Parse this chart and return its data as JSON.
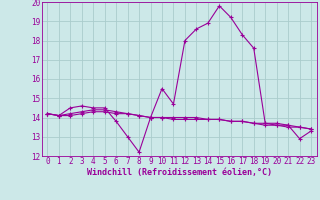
{
  "xlabel": "Windchill (Refroidissement éolien,°C)",
  "x_values": [
    0,
    1,
    2,
    3,
    4,
    5,
    6,
    7,
    8,
    9,
    10,
    11,
    12,
    13,
    14,
    15,
    16,
    17,
    18,
    19,
    20,
    21,
    22,
    23
  ],
  "line1_y": [
    14.2,
    14.1,
    14.5,
    14.6,
    14.5,
    14.5,
    13.8,
    13.0,
    12.2,
    14.0,
    15.5,
    14.7,
    18.0,
    18.6,
    18.9,
    19.8,
    19.2,
    18.3,
    17.6,
    13.7,
    13.6,
    13.6,
    12.9,
    13.3
  ],
  "line2_y": [
    14.2,
    14.1,
    14.1,
    14.2,
    14.3,
    14.3,
    14.2,
    14.2,
    14.1,
    14.0,
    14.0,
    14.0,
    14.0,
    14.0,
    13.9,
    13.9,
    13.8,
    13.8,
    13.7,
    13.7,
    13.7,
    13.6,
    13.5,
    13.4
  ],
  "line3_y": [
    14.2,
    14.1,
    14.2,
    14.3,
    14.4,
    14.4,
    14.3,
    14.2,
    14.1,
    14.0,
    14.0,
    13.9,
    13.9,
    13.9,
    13.9,
    13.9,
    13.8,
    13.8,
    13.7,
    13.6,
    13.6,
    13.5,
    13.5,
    13.4
  ],
  "line_color": "#990099",
  "bg_color": "#cce8e8",
  "grid_color": "#aacccc",
  "ylim": [
    12,
    20
  ],
  "xlim": [
    -0.5,
    23.5
  ],
  "yticks": [
    12,
    13,
    14,
    15,
    16,
    17,
    18,
    19,
    20
  ],
  "xticks": [
    0,
    1,
    2,
    3,
    4,
    5,
    6,
    7,
    8,
    9,
    10,
    11,
    12,
    13,
    14,
    15,
    16,
    17,
    18,
    19,
    20,
    21,
    22,
    23
  ],
  "marker": "+",
  "markersize": 3,
  "linewidth": 0.8,
  "tick_fontsize": 5.5,
  "label_fontsize": 6.0
}
